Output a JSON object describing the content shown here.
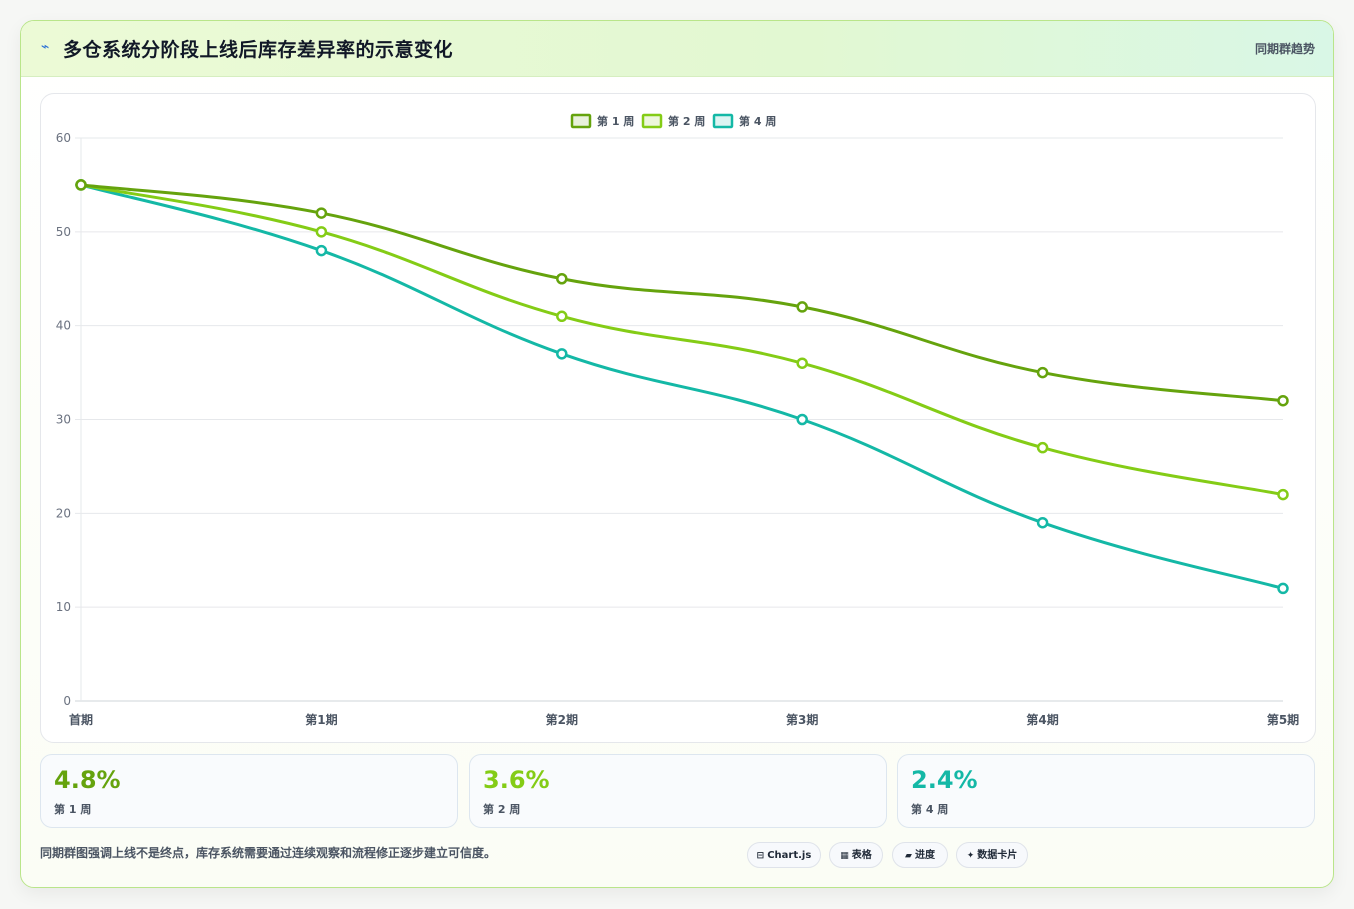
{
  "header": {
    "icon": "lightning-icon",
    "title": "多仓系统分阶段上线后库存差异率的示意变化",
    "tag": "同期群趋势"
  },
  "chart_data": {
    "type": "line",
    "x": [
      "首期",
      "第1期",
      "第2期",
      "第3期",
      "第4期",
      "第5期"
    ],
    "ylim": [
      0,
      60
    ],
    "yticks": [
      0,
      10,
      20,
      30,
      40,
      50,
      60
    ],
    "grid": true,
    "legend_position": "top",
    "series": [
      {
        "name": "第 1 周",
        "color": "#65a30d",
        "values": [
          55,
          52,
          45,
          42,
          35,
          32
        ]
      },
      {
        "name": "第 2 周",
        "color": "#84cc16",
        "values": [
          55,
          50,
          41,
          36,
          27,
          22
        ]
      },
      {
        "name": "第 4 周",
        "color": "#14b8a6",
        "values": [
          55,
          48,
          37,
          30,
          19,
          12
        ]
      }
    ]
  },
  "stats": [
    {
      "value": "4.8%",
      "label": "第 1 周",
      "color": "#65a30d"
    },
    {
      "value": "3.6%",
      "label": "第 2 周",
      "color": "#84cc16"
    },
    {
      "value": "2.4%",
      "label": "第 4 周",
      "color": "#14b8a6"
    }
  ],
  "footnote": "同期群图强调上线不是终点，库存系统需要通过连续观察和流程修正逐步建立可信度。",
  "chips": [
    {
      "icon": "⊟",
      "label": "Chart.js"
    },
    {
      "icon": "▦",
      "label": "表格"
    },
    {
      "icon": "▰",
      "label": "进度"
    },
    {
      "icon": "✦",
      "label": "数据卡片"
    }
  ]
}
